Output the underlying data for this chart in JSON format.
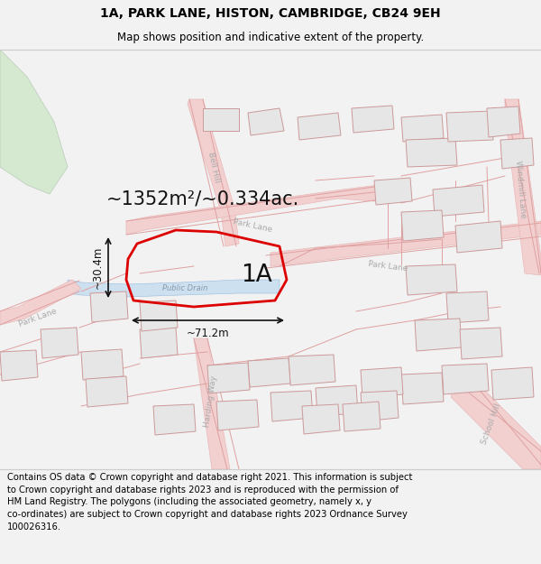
{
  "title": "1A, PARK LANE, HISTON, CAMBRIDGE, CB24 9EH",
  "subtitle": "Map shows position and indicative extent of the property.",
  "area_text": "~1352m²/~0.334ac.",
  "label_1a": "1A",
  "width_label": "~71.2m",
  "height_label": "~30.4m",
  "drain_label": "Public Drain",
  "street_bell_hill": "Bell Hill",
  "street_park_lane_diag": "Park Lane",
  "street_park_lane_horiz": "Park Lane",
  "street_windmill_lane": "Windmill Lane",
  "street_school_hill": "School Hill",
  "street_park_lane_left": "Park Lane",
  "street_harding_way": "Harding Way",
  "footer_line1": "Contains OS data © Crown copyright and database right 2021. This information is subject",
  "footer_line2": "to Crown copyright and database rights 2023 and is reproduced with the permission of",
  "footer_line3": "HM Land Registry. The polygons (including the associated geometry, namely x, y",
  "footer_line4": "co-ordinates) are subject to Crown copyright and database rights 2023 Ordnance Survey",
  "footer_line5": "100026316.",
  "bg_color": "#f2f2f2",
  "map_bg": "#ffffff",
  "title_fontsize": 10,
  "subtitle_fontsize": 8.5,
  "area_fontsize": 15,
  "label_fontsize": 19,
  "dim_fontsize": 8.5,
  "street_fontsize": 6.5,
  "footer_fontsize": 7.2,
  "property_edge": "#dd0000",
  "property_lw": 2.0,
  "building_fill": "#e6e6e6",
  "building_edge": "#cc9999",
  "road_fill": "#f2d0d0",
  "road_edge": "#e8b8b8",
  "green_fill": "#d5e8d0",
  "water_fill": "#cce0f0",
  "street_color": "#aaaaaa",
  "dim_color": "#111111"
}
